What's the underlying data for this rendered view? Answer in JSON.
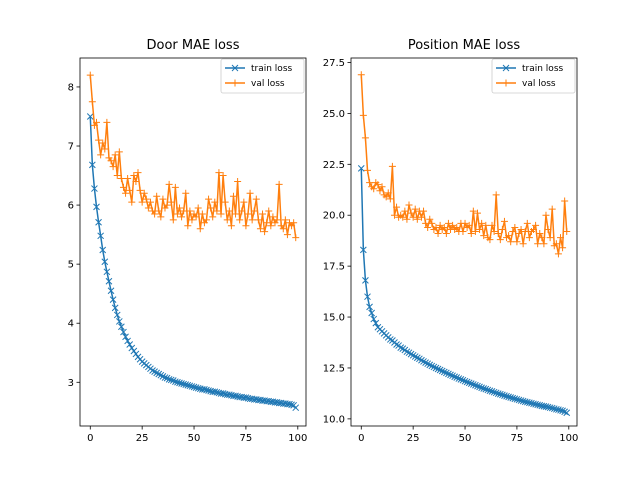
{
  "chart_data": [
    {
      "type": "line",
      "title": "Door MAE loss",
      "xlabel": "",
      "ylabel": "",
      "xlim": [
        -4.95,
        103.95
      ],
      "ylim": [
        2.26,
        8.49
      ],
      "xticks": [
        0,
        25,
        50,
        75,
        100
      ],
      "yticks": [
        3,
        4,
        5,
        6,
        7,
        8
      ],
      "legend": {
        "position": "top-right"
      },
      "series": [
        {
          "name": "train loss",
          "color": "#1f77b4",
          "marker": "x",
          "x": [
            0,
            1,
            2,
            3,
            4,
            5,
            6,
            7,
            8,
            9,
            10,
            11,
            12,
            13,
            14,
            15,
            16,
            17,
            18,
            19,
            20,
            21,
            22,
            23,
            24,
            25,
            26,
            27,
            28,
            29,
            30,
            31,
            32,
            33,
            34,
            35,
            36,
            37,
            38,
            39,
            40,
            41,
            42,
            43,
            44,
            45,
            46,
            47,
            48,
            49,
            50,
            51,
            52,
            53,
            54,
            55,
            56,
            57,
            58,
            59,
            60,
            61,
            62,
            63,
            64,
            65,
            66,
            67,
            68,
            69,
            70,
            71,
            72,
            73,
            74,
            75,
            76,
            77,
            78,
            79,
            80,
            81,
            82,
            83,
            84,
            85,
            86,
            87,
            88,
            89,
            90,
            91,
            92,
            93,
            94,
            95,
            96,
            97,
            98,
            99
          ],
          "values": [
            7.5,
            6.68,
            6.28,
            5.97,
            5.71,
            5.48,
            5.24,
            5.04,
            4.87,
            4.71,
            4.55,
            4.4,
            4.26,
            4.14,
            4.03,
            3.94,
            3.85,
            3.77,
            3.7,
            3.64,
            3.58,
            3.53,
            3.48,
            3.43,
            3.39,
            3.35,
            3.32,
            3.29,
            3.26,
            3.23,
            3.2,
            3.18,
            3.16,
            3.14,
            3.12,
            3.1,
            3.08,
            3.07,
            3.05,
            3.04,
            3.03,
            3.01,
            3,
            2.99,
            2.98,
            2.97,
            2.96,
            2.95,
            2.94,
            2.93,
            2.92,
            2.91,
            2.9,
            2.89,
            2.88,
            2.88,
            2.87,
            2.86,
            2.85,
            2.84,
            2.84,
            2.83,
            2.82,
            2.81,
            2.81,
            2.8,
            2.79,
            2.79,
            2.78,
            2.77,
            2.77,
            2.76,
            2.75,
            2.75,
            2.74,
            2.74,
            2.73,
            2.72,
            2.72,
            2.71,
            2.71,
            2.7,
            2.7,
            2.69,
            2.69,
            2.68,
            2.68,
            2.67,
            2.67,
            2.66,
            2.66,
            2.65,
            2.65,
            2.64,
            2.64,
            2.63,
            2.63,
            2.62,
            2.61,
            2.57
          ]
        },
        {
          "name": "val loss",
          "color": "#ff7f0e",
          "marker": "+",
          "x": [
            0,
            1,
            2,
            3,
            4,
            5,
            6,
            7,
            8,
            9,
            10,
            11,
            12,
            13,
            14,
            15,
            16,
            17,
            18,
            19,
            20,
            21,
            22,
            23,
            24,
            25,
            26,
            27,
            28,
            29,
            30,
            31,
            32,
            33,
            34,
            35,
            36,
            37,
            38,
            39,
            40,
            41,
            42,
            43,
            44,
            45,
            46,
            47,
            48,
            49,
            50,
            51,
            52,
            53,
            54,
            55,
            56,
            57,
            58,
            59,
            60,
            61,
            62,
            63,
            64,
            65,
            66,
            67,
            68,
            69,
            70,
            71,
            72,
            73,
            74,
            75,
            76,
            77,
            78,
            79,
            80,
            81,
            82,
            83,
            84,
            85,
            86,
            87,
            88,
            89,
            90,
            91,
            92,
            93,
            94,
            95,
            96,
            97,
            98,
            99
          ],
          "values": [
            8.2,
            7.75,
            7.35,
            7.4,
            7.1,
            6.85,
            7.05,
            6.95,
            7.4,
            6.8,
            6.75,
            6.65,
            6.85,
            6.5,
            6.9,
            6.45,
            6.3,
            6.2,
            6.45,
            6.25,
            6.05,
            6.5,
            6.4,
            6.55,
            6.25,
            6.05,
            6.2,
            6.1,
            5.95,
            6.05,
            5.9,
            5.85,
            6.15,
            5.9,
            5.8,
            6.1,
            5.95,
            6,
            6.35,
            6.05,
            5.75,
            6.3,
            5.85,
            5.95,
            5.8,
            5.9,
            6.2,
            5.65,
            5.9,
            5.75,
            5.85,
            5.8,
            5.95,
            5.6,
            5.85,
            5.7,
            5.75,
            6.1,
            5.95,
            5.8,
            6.05,
            5.9,
            6.55,
            5.85,
            6.5,
            6.05,
            5.75,
            5.9,
            5.65,
            6.15,
            5.85,
            6.4,
            5.75,
            5.9,
            6.05,
            5.65,
            5.85,
            6.2,
            5.75,
            5.9,
            6.1,
            5.75,
            5.6,
            5.85,
            5.55,
            5.7,
            5.9,
            5.65,
            5.8,
            5.7,
            5.75,
            6.35,
            5.65,
            5.6,
            5.75,
            5.5,
            5.7,
            5.65,
            5.7,
            5.45
          ]
        }
      ]
    },
    {
      "type": "line",
      "title": "Position MAE loss",
      "xlabel": "",
      "ylabel": "",
      "xlim": [
        -4.95,
        103.95
      ],
      "ylim": [
        9.65,
        27.72
      ],
      "xticks": [
        0,
        25,
        50,
        75,
        100
      ],
      "yticks": [
        10.0,
        12.5,
        15.0,
        17.5,
        20.0,
        22.5,
        25.0,
        27.5
      ],
      "ytick_format": "0.0",
      "legend": {
        "position": "top-right"
      },
      "series": [
        {
          "name": "train loss",
          "color": "#1f77b4",
          "marker": "x",
          "x": [
            0,
            1,
            2,
            3,
            4,
            5,
            6,
            7,
            8,
            9,
            10,
            11,
            12,
            13,
            14,
            15,
            16,
            17,
            18,
            19,
            20,
            21,
            22,
            23,
            24,
            25,
            26,
            27,
            28,
            29,
            30,
            31,
            32,
            33,
            34,
            35,
            36,
            37,
            38,
            39,
            40,
            41,
            42,
            43,
            44,
            45,
            46,
            47,
            48,
            49,
            50,
            51,
            52,
            53,
            54,
            55,
            56,
            57,
            58,
            59,
            60,
            61,
            62,
            63,
            64,
            65,
            66,
            67,
            68,
            69,
            70,
            71,
            72,
            73,
            74,
            75,
            76,
            77,
            78,
            79,
            80,
            81,
            82,
            83,
            84,
            85,
            86,
            87,
            88,
            89,
            90,
            91,
            92,
            93,
            94,
            95,
            96,
            97,
            98,
            99
          ],
          "values": [
            22.3,
            18.3,
            16.8,
            16,
            15.5,
            15.2,
            14.9,
            14.7,
            14.5,
            14.4,
            14.3,
            14.2,
            14.1,
            14,
            13.9,
            13.85,
            13.75,
            13.65,
            13.6,
            13.5,
            13.45,
            13.38,
            13.3,
            13.25,
            13.18,
            13.12,
            13.06,
            13,
            12.95,
            12.88,
            12.82,
            12.76,
            12.71,
            12.65,
            12.6,
            12.55,
            12.5,
            12.45,
            12.4,
            12.35,
            12.3,
            12.26,
            12.21,
            12.16,
            12.12,
            12.07,
            12.03,
            11.98,
            11.94,
            11.9,
            11.85,
            11.81,
            11.77,
            11.73,
            11.69,
            11.65,
            11.61,
            11.57,
            11.53,
            11.49,
            11.46,
            11.42,
            11.38,
            11.35,
            11.31,
            11.28,
            11.24,
            11.21,
            11.18,
            11.14,
            11.11,
            11.08,
            11.05,
            11.02,
            10.99,
            10.96,
            10.93,
            10.9,
            10.87,
            10.84,
            10.82,
            10.79,
            10.77,
            10.74,
            10.72,
            10.69,
            10.67,
            10.64,
            10.62,
            10.6,
            10.58,
            10.55,
            10.53,
            10.5,
            10.47,
            10.45,
            10.42,
            10.4,
            10.35,
            10.3
          ]
        },
        {
          "name": "val loss",
          "color": "#ff7f0e",
          "marker": "+",
          "x": [
            0,
            1,
            2,
            3,
            4,
            5,
            6,
            7,
            8,
            9,
            10,
            11,
            12,
            13,
            14,
            15,
            16,
            17,
            18,
            19,
            20,
            21,
            22,
            23,
            24,
            25,
            26,
            27,
            28,
            29,
            30,
            31,
            32,
            33,
            34,
            35,
            36,
            37,
            38,
            39,
            40,
            41,
            42,
            43,
            44,
            45,
            46,
            47,
            48,
            49,
            50,
            51,
            52,
            53,
            54,
            55,
            56,
            57,
            58,
            59,
            60,
            61,
            62,
            63,
            64,
            65,
            66,
            67,
            68,
            69,
            70,
            71,
            72,
            73,
            74,
            75,
            76,
            77,
            78,
            79,
            80,
            81,
            82,
            83,
            84,
            85,
            86,
            87,
            88,
            89,
            90,
            91,
            92,
            93,
            94,
            95,
            96,
            97,
            98,
            99
          ],
          "values": [
            26.9,
            24.9,
            23.8,
            22.2,
            21.6,
            21.4,
            21.3,
            21.6,
            21.5,
            21.2,
            21.4,
            21,
            20.9,
            21.1,
            20.8,
            22.4,
            20,
            20.4,
            19.9,
            20,
            19.9,
            20.2,
            19.8,
            20.5,
            20.1,
            19.9,
            20.3,
            19.8,
            20.2,
            19.9,
            20.2,
            19.6,
            19.4,
            19.8,
            19.6,
            19.3,
            19.4,
            19.1,
            19.5,
            19.3,
            19.4,
            19.1,
            19.6,
            19.3,
            19.5,
            19.3,
            19.4,
            19.2,
            19.6,
            19.2,
            19.6,
            19.4,
            19.5,
            19.1,
            20.2,
            19.2,
            20.1,
            19.3,
            19.6,
            19.0,
            19.5,
            18.9,
            18.8,
            19.5,
            19.2,
            21,
            19.1,
            18.8,
            19.3,
            19.7,
            18.9,
            19,
            18.7,
            19.2,
            19.4,
            18.7,
            19.1,
            19.3,
            18.6,
            19.2,
            19.6,
            18.9,
            19.2,
            19.3,
            19.5,
            18.6,
            19.1,
            18.9,
            18.6,
            20,
            19.3,
            18.9,
            20.3,
            18.5,
            18.6,
            18.1,
            18.9,
            18.4,
            20.7,
            19.2
          ]
        }
      ]
    }
  ]
}
